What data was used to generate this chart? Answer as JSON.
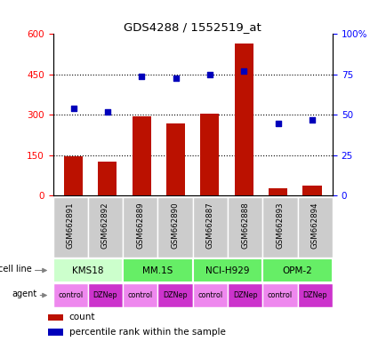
{
  "title": "GDS4288 / 1552519_at",
  "samples": [
    "GSM662891",
    "GSM662892",
    "GSM662889",
    "GSM662890",
    "GSM662887",
    "GSM662888",
    "GSM662893",
    "GSM662894"
  ],
  "bar_values": [
    148,
    125,
    295,
    270,
    305,
    565,
    28,
    38
  ],
  "percentile_values": [
    54,
    52,
    74,
    73,
    75,
    77,
    45,
    47
  ],
  "bar_color": "#bb1100",
  "dot_color": "#0000bb",
  "left_ylim": [
    0,
    600
  ],
  "right_ylim": [
    0,
    100
  ],
  "left_yticks": [
    0,
    150,
    300,
    450,
    600
  ],
  "right_yticks": [
    0,
    25,
    50,
    75,
    100
  ],
  "right_yticklabels": [
    "0",
    "25",
    "50",
    "75",
    "100%"
  ],
  "cell_line_data": [
    {
      "label": "KMS18",
      "start": 0,
      "end": 2,
      "color": "#ccffcc"
    },
    {
      "label": "MM.1S",
      "start": 2,
      "end": 4,
      "color": "#66ee66"
    },
    {
      "label": "NCI-H929",
      "start": 4,
      "end": 6,
      "color": "#66ee66"
    },
    {
      "label": "OPM-2",
      "start": 6,
      "end": 8,
      "color": "#66ee66"
    }
  ],
  "agents": [
    "control",
    "DZNep",
    "control",
    "DZNep",
    "control",
    "DZNep",
    "control",
    "DZNep"
  ],
  "agent_control_color": "#ee88ee",
  "agent_DZNep_color": "#cc33cc",
  "sample_bg_color": "#cccccc",
  "bar_width": 0.55,
  "n": 8
}
